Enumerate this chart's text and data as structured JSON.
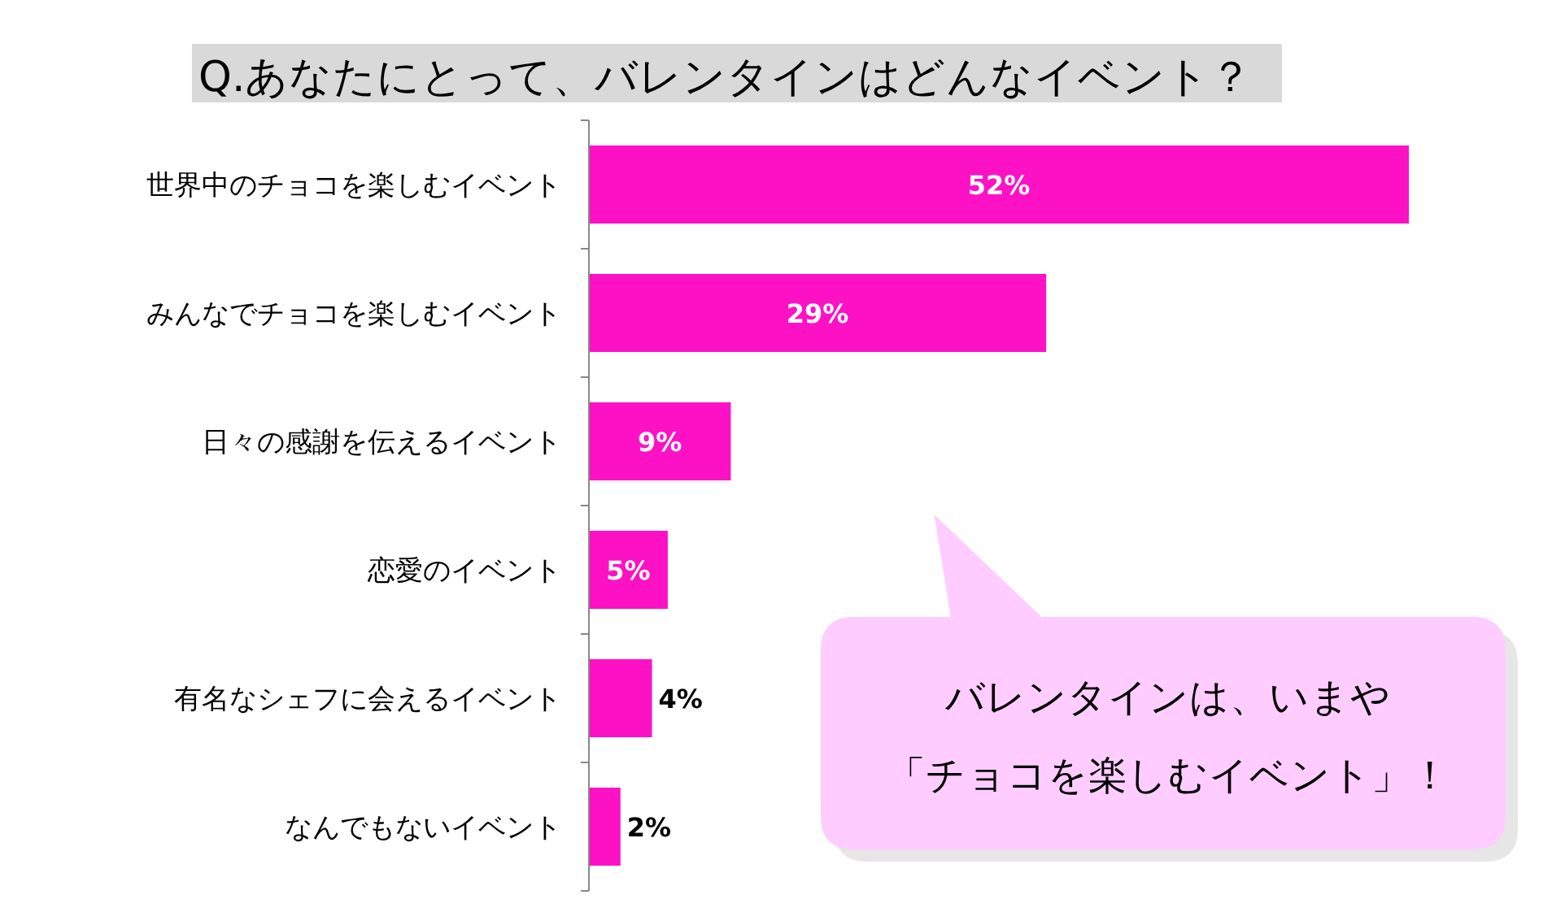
{
  "chart_data": {
    "type": "bar",
    "orientation": "horizontal",
    "title": "Q.あなたにとって、バレンタインはどんなイベント？",
    "categories": [
      "世界中のチョコを楽しむイベント",
      "みんなでチョコを楽しむイベント",
      "日々の感謝を伝えるイベント",
      "恋愛のイベント",
      "有名なシェフに会えるイベント",
      "なんでもないイベント"
    ],
    "values": [
      52,
      29,
      9,
      5,
      4,
      2
    ],
    "value_labels": [
      "52%",
      "29%",
      "9%",
      "5%",
      "4%",
      "2%"
    ],
    "color": "#fc12c4",
    "annotations": [
      "バレンタインは、いまや",
      "「チョコを楽しむイベント」！"
    ]
  }
}
